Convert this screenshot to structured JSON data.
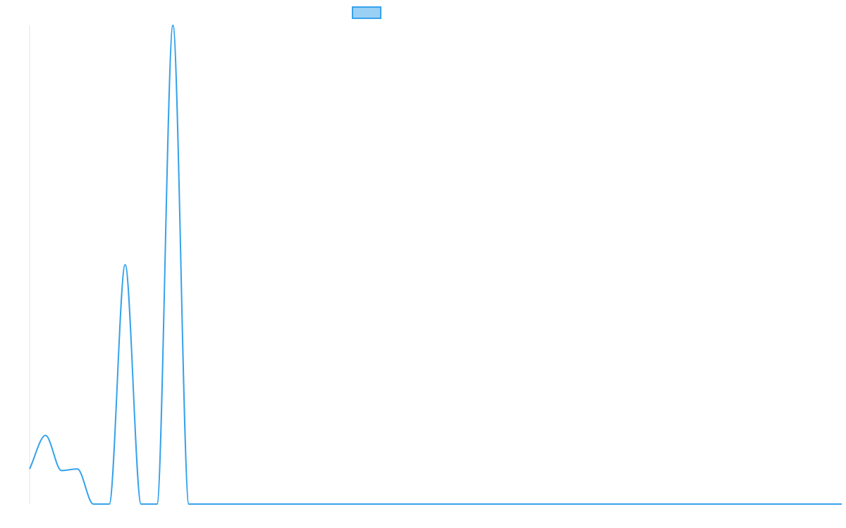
{
  "chart_data": {
    "type": "line",
    "title": "",
    "xlabel": "",
    "ylabel": "",
    "grid": false,
    "legend_position": "top",
    "ylim": [
      0,
      30
    ],
    "x": [
      0,
      1,
      2,
      3,
      4,
      5,
      6,
      7,
      8,
      9,
      10,
      11,
      12,
      13,
      14,
      15,
      16,
      17,
      18,
      19,
      20,
      21,
      22,
      23,
      24,
      25,
      26,
      27,
      28,
      29,
      30,
      31,
      32,
      33,
      34,
      35,
      36,
      37,
      38,
      39,
      40,
      41,
      42,
      43,
      44,
      45,
      46,
      47,
      48,
      49,
      50,
      51
    ],
    "series": [
      {
        "name": "",
        "color": "#36A2EB",
        "fill_color": "#9AD0F5",
        "values": [
          2.2,
          4.3,
          2.1,
          2.2,
          0,
          0,
          15,
          0,
          0,
          30,
          0,
          0,
          0,
          0,
          0,
          0,
          0,
          0,
          0,
          0,
          0,
          0,
          0,
          0,
          0,
          0,
          0,
          0,
          0,
          0,
          0,
          0,
          0,
          0,
          0,
          0,
          0,
          0,
          0,
          0,
          0,
          0,
          0,
          0,
          0,
          0,
          0,
          0,
          0,
          0,
          0,
          0
        ]
      }
    ]
  }
}
